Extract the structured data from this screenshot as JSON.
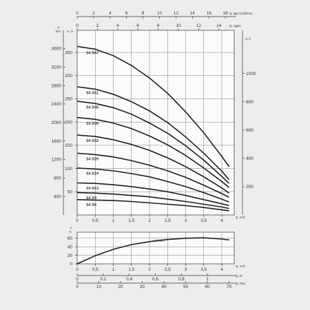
{
  "chart_data": [
    {
      "type": "line",
      "panel": "head",
      "series_x_unit": "m³/h",
      "top_axis_1": {
        "ticks": [
          "0",
          "2",
          "4",
          "6",
          "8",
          "10",
          "12",
          "14",
          "16",
          "18"
        ],
        "unit": "Q, Igpm (Gal/min)"
      },
      "top_axis_2": {
        "ticks": [
          "0",
          "2",
          "4",
          "6",
          "8",
          "10",
          "12",
          "14"
        ],
        "unit": "Q, Ugpm"
      },
      "left_axis_kpa": {
        "unit_top": "p",
        "unit": "kPa",
        "ticks": [
          "400",
          "800",
          "1200",
          "1600",
          "2000",
          "2400",
          "2800",
          "3200",
          "3600"
        ]
      },
      "left_axis_m": {
        "unit": "H, m",
        "ticks": [
          "50",
          "100",
          "150",
          "200",
          "250",
          "300",
          "350"
        ]
      },
      "right_axis_ft": {
        "unit": "H, ft",
        "ticks": [
          "200",
          "400",
          "600",
          "800",
          "1000"
        ]
      },
      "bottom_axis": {
        "ticks": [
          "0",
          "0,5",
          "1",
          "1,5",
          "2",
          "2,5",
          "3",
          "3,5",
          "4"
        ],
        "unit": "Q, m³/h"
      },
      "xlim": [
        0,
        4.3
      ],
      "ylim": [
        0,
        370
      ],
      "grid": true,
      "series": [
        {
          "name": "S4 3/67",
          "x": [
            0,
            0.5,
            1,
            1.5,
            2,
            2.5,
            3,
            3.5,
            4,
            4.2
          ],
          "values": [
            363,
            357,
            343,
            322,
            295,
            262,
            222,
            177,
            126,
            104
          ]
        },
        {
          "name": "S4 3/51",
          "x": [
            0,
            0.5,
            1,
            1.5,
            2,
            2.5,
            3,
            3.5,
            4,
            4.2
          ],
          "values": [
            276,
            271,
            260,
            244,
            224,
            199,
            168,
            133,
            94,
            76
          ]
        },
        {
          "name": "S4 3/45",
          "x": [
            0,
            0.5,
            1,
            1.5,
            2,
            2.5,
            3,
            3.5,
            4,
            4.2
          ],
          "values": [
            245,
            240,
            231,
            217,
            198,
            176,
            149,
            118,
            83,
            68
          ]
        },
        {
          "name": "S4 3/39",
          "x": [
            0,
            0.5,
            1,
            1.5,
            2,
            2.5,
            3,
            3.5,
            4,
            4.2
          ],
          "values": [
            210,
            206,
            198,
            186,
            170,
            151,
            128,
            101,
            72,
            59
          ]
        },
        {
          "name": "S4 3/32",
          "x": [
            0,
            0.5,
            1,
            1.5,
            2,
            2.5,
            3,
            3.5,
            4,
            4.2
          ],
          "values": [
            172,
            169,
            162,
            152,
            139,
            123,
            104,
            82,
            58,
            47
          ]
        },
        {
          "name": "S4 3/25",
          "x": [
            0,
            0.5,
            1,
            1.5,
            2,
            2.5,
            3,
            3.5,
            4,
            4.2
          ],
          "values": [
            133,
            130,
            125,
            117,
            107,
            95,
            81,
            64,
            46,
            38
          ]
        },
        {
          "name": "S4 3/19",
          "x": [
            0,
            0.5,
            1,
            1.5,
            2,
            2.5,
            3,
            3.5,
            4,
            4.2
          ],
          "values": [
            101,
            99,
            95,
            89,
            82,
            72,
            61,
            48,
            34,
            28
          ]
        },
        {
          "name": "S4 3/13",
          "x": [
            0,
            0.5,
            1,
            1.5,
            2,
            2.5,
            3,
            3.5,
            4,
            4.2
          ],
          "values": [
            69,
            68,
            65,
            61,
            56,
            50,
            42,
            33,
            24,
            20
          ]
        },
        {
          "name": "S4 3/9",
          "x": [
            0,
            0.5,
            1,
            1.5,
            2,
            2.5,
            3,
            3.5,
            4,
            4.2
          ],
          "values": [
            48,
            47,
            45,
            42,
            39,
            34,
            29,
            23,
            17,
            14
          ]
        },
        {
          "name": "S4 3/6",
          "x": [
            0,
            0.5,
            1,
            1.5,
            2,
            2.5,
            3,
            3.5,
            4,
            4.2
          ],
          "values": [
            33,
            32,
            31,
            29,
            26,
            23,
            20,
            16,
            11,
            9
          ]
        }
      ]
    },
    {
      "type": "line",
      "panel": "efficiency",
      "left_axis": {
        "unit_top": "η",
        "unit": "%",
        "ticks": [
          "0",
          "20",
          "40",
          "60"
        ]
      },
      "bottom_axis_1": {
        "ticks": [
          "0",
          "0,5",
          "1",
          "1,5",
          "2",
          "2,5",
          "3",
          "3,5",
          "4"
        ],
        "unit": "Q, m³/h"
      },
      "bottom_axis_2": {
        "ticks": [
          "0",
          "0,2",
          "0,4",
          "0,6",
          "0,8",
          "1"
        ],
        "unit": "Q, l/s"
      },
      "bottom_axis_3": {
        "ticks": [
          "0",
          "10",
          "20",
          "30",
          "40",
          "50",
          "60",
          "70"
        ],
        "unit": "Q, l/min"
      },
      "xlim": [
        0,
        4.3
      ],
      "ylim": [
        0,
        70
      ],
      "grid": true,
      "series": [
        {
          "name": "η HYDR.",
          "x": [
            0,
            0.5,
            1,
            1.5,
            2,
            2.5,
            3,
            3.5,
            4,
            4.2
          ],
          "values": [
            0,
            19,
            34,
            45,
            52,
            57,
            60,
            61,
            58,
            56
          ]
        }
      ]
    }
  ]
}
